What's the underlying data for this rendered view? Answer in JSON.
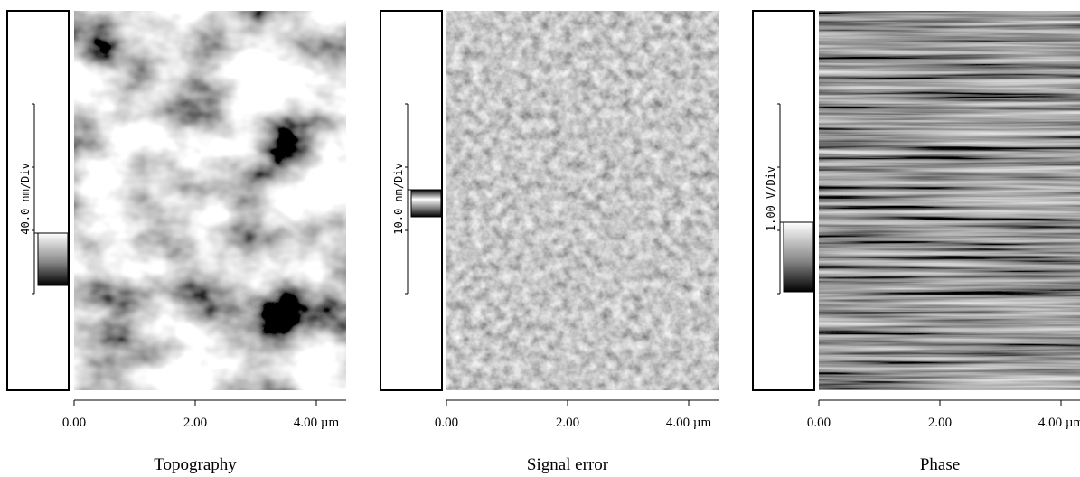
{
  "panels": [
    {
      "scale_label": "40.0 nm/Div",
      "x_ticks": [
        "0.00",
        "2.00",
        "4.00 µm"
      ],
      "caption": "Topography"
    },
    {
      "scale_label": "10.0 nm/Div",
      "x_ticks": [
        "0.00",
        "2.00",
        "4.00 µm"
      ],
      "caption": "Signal error"
    },
    {
      "scale_label": "1.00 V/Div",
      "x_ticks": [
        "0.00",
        "2.00",
        "4.00 µm"
      ],
      "caption": "Phase"
    }
  ]
}
